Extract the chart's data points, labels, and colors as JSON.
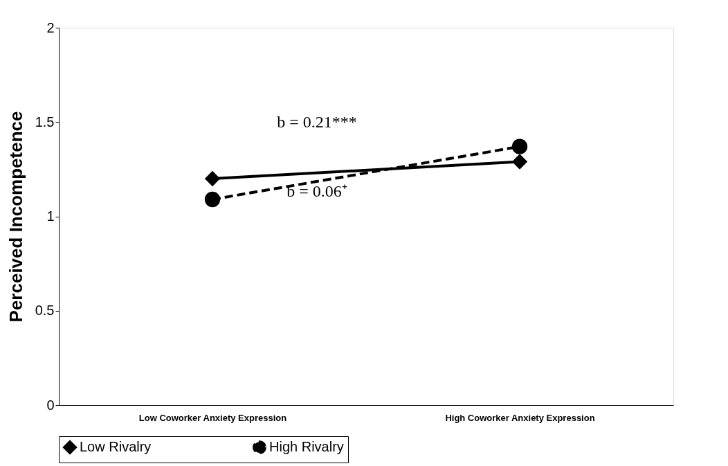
{
  "chart_data": {
    "type": "line",
    "ylabel": "Perceived Incompetence",
    "categories": [
      "Low Coworker Anxiety Expression",
      "High Coworker Anxiety Expression"
    ],
    "series": [
      {
        "name": "Low Rivalry",
        "color": "#000000",
        "values": [
          1.2,
          1.29
        ],
        "marker": "diamond",
        "line_style": "solid"
      },
      {
        "name": "High Rivalry",
        "color": "#000000",
        "values": [
          1.09,
          1.37
        ],
        "marker": "circle",
        "line_style": "dashed"
      }
    ],
    "ylim": [
      0,
      2
    ],
    "yticks": [
      0,
      0.5,
      1,
      1.5,
      2
    ],
    "grid": false,
    "legend": "bottom",
    "annotations": [
      "b = 0.21***",
      "b = 0.06⁺"
    ]
  }
}
